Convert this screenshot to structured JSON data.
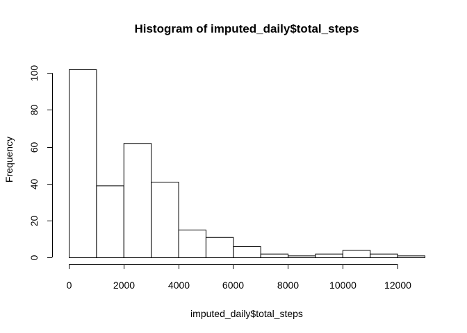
{
  "chart_data": {
    "type": "bar",
    "title": "Histogram of imputed_daily$total_steps",
    "xlabel": "imputed_daily$total_steps",
    "ylabel": "Frequency",
    "bins": [
      {
        "from": 0,
        "to": 1000,
        "count": 102
      },
      {
        "from": 1000,
        "to": 2000,
        "count": 39
      },
      {
        "from": 2000,
        "to": 3000,
        "count": 62
      },
      {
        "from": 3000,
        "to": 4000,
        "count": 41
      },
      {
        "from": 4000,
        "to": 5000,
        "count": 15
      },
      {
        "from": 5000,
        "to": 6000,
        "count": 11
      },
      {
        "from": 6000,
        "to": 7000,
        "count": 6
      },
      {
        "from": 7000,
        "to": 8000,
        "count": 2
      },
      {
        "from": 8000,
        "to": 9000,
        "count": 1
      },
      {
        "from": 9000,
        "to": 10000,
        "count": 2
      },
      {
        "from": 10000,
        "to": 11000,
        "count": 4
      },
      {
        "from": 11000,
        "to": 12000,
        "count": 2
      },
      {
        "from": 12000,
        "to": 13000,
        "count": 1
      }
    ],
    "xlim": [
      0,
      13000
    ],
    "ylim": [
      0,
      105
    ],
    "x_ticks": [
      0,
      2000,
      4000,
      6000,
      8000,
      10000,
      12000
    ],
    "x_tick_labels": [
      "0",
      "2000",
      "4000",
      "6000",
      "8000",
      "10000",
      "12000"
    ],
    "y_ticks": [
      0,
      20,
      40,
      60,
      80,
      100
    ],
    "y_tick_labels": [
      "0",
      "20",
      "40",
      "60",
      "80",
      "100"
    ],
    "grid": false,
    "legend": "none",
    "colors": {
      "bar_fill": "#ffffff",
      "bar_stroke": "#000000"
    }
  }
}
